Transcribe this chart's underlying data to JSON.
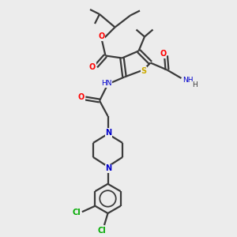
{
  "bg_color": "#ececec",
  "bond_color": "#3a3a3a",
  "oxygen_color": "#ff0000",
  "nitrogen_color": "#0000cc",
  "sulfur_color": "#ccaa00",
  "chlorine_color": "#00aa00",
  "line_width": 1.6,
  "fig_size": [
    3.0,
    3.0
  ],
  "dpi": 100,
  "xlim": [
    0,
    10
  ],
  "ylim": [
    0,
    10
  ]
}
